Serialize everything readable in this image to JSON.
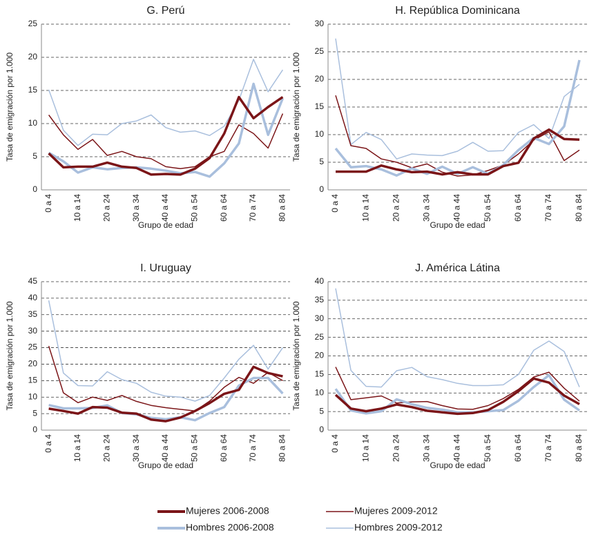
{
  "chart_data": [
    {
      "type": "line",
      "title": "G. Perú",
      "xlabel": "Grupo de edad",
      "ylabel": "Tasa de emigración por 1.000",
      "categories": [
        "0 a 4",
        null,
        "10 a 14",
        null,
        "20 a 24",
        null,
        "30 a 34",
        null,
        "40 a 44",
        null,
        "50 a 54",
        null,
        "60 a 64",
        null,
        "70 a 74",
        null,
        "80 a 84"
      ],
      "ylim": [
        0,
        25
      ],
      "yticks": [
        0,
        5,
        10,
        15,
        20,
        25
      ],
      "grid": true,
      "series": [
        {
          "name": "Mujeres 2006-2008",
          "color": "#7b1518",
          "values": [
            5.5,
            3.4,
            3.5,
            3.5,
            4.1,
            3.5,
            3.3,
            2.3,
            2.4,
            2.3,
            3.2,
            4.8,
            8.5,
            14.0,
            10.8,
            12.5,
            14.0
          ]
        },
        {
          "name": "Mujeres 2009-2012",
          "color": "#7b1518",
          "values": [
            11.3,
            8.3,
            6.1,
            7.6,
            5.2,
            5.8,
            5.0,
            4.7,
            3.5,
            3.2,
            3.5,
            5.0,
            5.8,
            9.8,
            8.5,
            6.3,
            11.5
          ]
        },
        {
          "name": "Hombres 2006-2008",
          "color": "#a9bfdd",
          "values": [
            5.6,
            4.3,
            2.6,
            3.4,
            3.1,
            3.3,
            3.4,
            3.2,
            2.9,
            2.5,
            2.7,
            2.0,
            4.0,
            7.0,
            16.0,
            8.3,
            13.8
          ]
        },
        {
          "name": "Hombres 2009-2012",
          "color": "#a9bfdd",
          "values": [
            15.1,
            9.0,
            6.7,
            8.4,
            8.3,
            10.0,
            10.4,
            11.3,
            9.4,
            8.7,
            8.9,
            8.2,
            9.6,
            13.5,
            19.7,
            14.8,
            18.1
          ]
        }
      ]
    },
    {
      "type": "line",
      "title": "H. República Dominicana",
      "xlabel": "Grupo de edad",
      "ylabel": "Tasa de emigración por 1.000",
      "categories": [
        "0 a 4",
        null,
        "10 a 14",
        null,
        "20 a 24",
        null,
        "30 a 34",
        null,
        "40 a 44",
        null,
        "50 a 54",
        null,
        "60 a 64",
        null,
        "70 a 74",
        null,
        "80 a 84"
      ],
      "ylim": [
        0,
        30
      ],
      "yticks": [
        0,
        5,
        10,
        15,
        20,
        25,
        30
      ],
      "grid": true,
      "series": [
        {
          "name": "Mujeres 2006-2008",
          "color": "#7b1518",
          "values": [
            3.3,
            3.3,
            3.3,
            4.4,
            3.7,
            3.2,
            3.3,
            2.8,
            3.2,
            2.8,
            2.8,
            4.3,
            4.9,
            9.3,
            10.9,
            9.2,
            9.1
          ]
        },
        {
          "name": "Mujeres 2009-2012",
          "color": "#7b1518",
          "values": [
            17.1,
            8.0,
            7.5,
            5.6,
            5.0,
            4.0,
            4.7,
            3.2,
            2.5,
            2.7,
            3.5,
            4.5,
            6.5,
            9.0,
            10.5,
            5.3,
            7.2
          ]
        },
        {
          "name": "Hombres 2006-2008",
          "color": "#a9bfdd",
          "values": [
            7.5,
            4.1,
            4.3,
            3.7,
            2.6,
            3.9,
            2.9,
            4.2,
            2.9,
            4.1,
            2.9,
            4.5,
            7.2,
            9.4,
            8.3,
            11.5,
            23.5
          ]
        },
        {
          "name": "Hombres 2009-2012",
          "color": "#a9bfdd",
          "values": [
            27.4,
            8.2,
            10.4,
            9.1,
            5.6,
            6.5,
            6.3,
            6.2,
            7.0,
            8.6,
            7.0,
            7.1,
            10.4,
            11.8,
            9.3,
            16.9,
            19.1
          ]
        }
      ]
    },
    {
      "type": "line",
      "title": "I. Uruguay",
      "xlabel": "Grupo de edad",
      "ylabel": "Tasa de emigración por 1.000",
      "categories": [
        "0 a 4",
        null,
        "10 a 14",
        null,
        "20 a 24",
        null,
        "30 a 34",
        null,
        "40 a 44",
        null,
        "50 a 54",
        null,
        "60 a 64",
        null,
        "70 a 74",
        null,
        "80 a 84"
      ],
      "ylim": [
        0,
        45
      ],
      "yticks": [
        0,
        5,
        10,
        15,
        20,
        25,
        30,
        35,
        40,
        45
      ],
      "grid": true,
      "series": [
        {
          "name": "Mujeres 2006-2008",
          "color": "#7b1518",
          "values": [
            6.5,
            5.8,
            5.0,
            7.0,
            6.8,
            5.3,
            5.0,
            3.2,
            2.7,
            3.8,
            5.8,
            8.2,
            11.0,
            12.2,
            19.2,
            17.3,
            16.3
          ]
        },
        {
          "name": "Mujeres 2009-2012",
          "color": "#7b1518",
          "values": [
            25.5,
            11.3,
            8.3,
            10.0,
            9.0,
            10.5,
            8.7,
            7.5,
            6.8,
            6.3,
            5.8,
            8.8,
            13.0,
            16.0,
            14.2,
            17.5,
            15.0
          ]
        },
        {
          "name": "Hombres 2006-2008",
          "color": "#a9bfdd",
          "values": [
            7.6,
            6.6,
            6.6,
            6.7,
            7.5,
            5.2,
            4.8,
            3.7,
            3.3,
            3.9,
            3.0,
            5.2,
            7.0,
            13.5,
            15.8,
            15.8,
            11.1
          ]
        },
        {
          "name": "Hombres 2009-2012",
          "color": "#a9bfdd",
          "values": [
            39.3,
            17.3,
            13.5,
            13.4,
            17.7,
            15.3,
            14.2,
            11.5,
            10.3,
            10.0,
            8.8,
            10.5,
            15.8,
            21.5,
            25.7,
            18.5,
            25.0
          ]
        }
      ]
    },
    {
      "type": "line",
      "title": "J. América Látina",
      "xlabel": "Grupo de edad",
      "ylabel": "Tasa de emigración por 1.000",
      "categories": [
        "0 a 4",
        null,
        "10 a 14",
        null,
        "20 a 24",
        null,
        "30 a 34",
        null,
        "40 a 44",
        null,
        "50 a 54",
        null,
        "60 a 64",
        null,
        "70 a 74",
        null,
        "80 a 84"
      ],
      "ylim": [
        0,
        40
      ],
      "yticks": [
        0,
        5,
        10,
        15,
        20,
        25,
        30,
        35,
        40
      ],
      "grid": true,
      "series": [
        {
          "name": "Mujeres 2006-2008",
          "color": "#7b1518",
          "values": [
            9.5,
            5.8,
            5.1,
            5.8,
            6.9,
            6.2,
            5.2,
            4.8,
            4.4,
            4.6,
            5.4,
            7.6,
            10.5,
            13.9,
            12.8,
            9.3,
            7.0
          ]
        },
        {
          "name": "Mujeres 2009-2012",
          "color": "#7b1518",
          "values": [
            17.0,
            8.2,
            8.7,
            9.2,
            7.3,
            7.6,
            7.7,
            6.6,
            5.7,
            5.6,
            6.6,
            8.5,
            11.0,
            14.3,
            15.6,
            11.3,
            7.8
          ]
        },
        {
          "name": "Hombres 2006-2008",
          "color": "#a9bfdd",
          "values": [
            11.1,
            5.3,
            4.5,
            5.1,
            8.3,
            7.0,
            6.0,
            5.5,
            4.8,
            4.8,
            5.1,
            5.4,
            7.9,
            11.6,
            14.8,
            8.2,
            5.3
          ]
        },
        {
          "name": "Hombres 2009-2012",
          "color": "#a9bfdd",
          "values": [
            38.2,
            16.1,
            11.8,
            11.6,
            16.0,
            16.9,
            14.4,
            13.6,
            12.6,
            12.0,
            12.0,
            12.2,
            15.0,
            21.5,
            24.0,
            21.2,
            11.6
          ]
        }
      ]
    }
  ]
}
